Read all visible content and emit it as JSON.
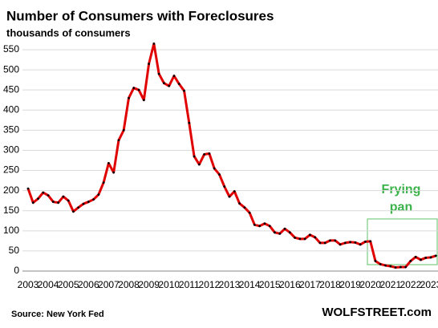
{
  "chart_data": {
    "type": "line",
    "title": "Number  of Consumers  with Foreclosures",
    "subtitle": "thousands of consumers",
    "source": "Source: New York Fed",
    "watermark": "WOLFSTREET.com",
    "annotation": [
      "Frying",
      "pan"
    ],
    "categories": [
      "2003",
      null,
      null,
      null,
      "2004",
      null,
      null,
      null,
      "2005",
      null,
      null,
      null,
      "2006",
      null,
      null,
      null,
      "2007",
      null,
      null,
      null,
      "2008",
      null,
      null,
      null,
      "2009",
      null,
      null,
      null,
      "2010",
      null,
      null,
      null,
      "2011",
      null,
      null,
      null,
      "2012",
      null,
      null,
      null,
      "2013",
      null,
      null,
      null,
      "2014",
      null,
      null,
      null,
      "2015",
      null,
      null,
      null,
      "2016",
      null,
      null,
      null,
      "2017",
      null,
      null,
      null,
      "2018",
      null,
      null,
      null,
      "2019",
      null,
      null,
      null,
      "2020",
      null,
      null,
      null,
      "2021",
      null,
      null,
      null,
      "2022",
      null,
      null,
      null,
      "2023",
      null
    ],
    "series": [
      {
        "name": "Consumers with foreclosures",
        "color": "#e00000",
        "values": [
          205,
          170,
          180,
          195,
          188,
          172,
          170,
          185,
          175,
          148,
          158,
          167,
          172,
          178,
          190,
          220,
          268,
          245,
          325,
          350,
          430,
          455,
          450,
          425,
          515,
          565,
          490,
          467,
          460,
          485,
          465,
          448,
          368,
          285,
          265,
          290,
          292,
          255,
          240,
          210,
          185,
          198,
          168,
          158,
          145,
          115,
          112,
          118,
          112,
          96,
          93,
          105,
          96,
          83,
          80,
          80,
          90,
          84,
          70,
          70,
          76,
          76,
          66,
          70,
          72,
          71,
          66,
          73,
          74,
          25,
          17,
          14,
          12,
          9,
          10,
          10,
          25,
          35,
          28,
          33,
          34,
          38
        ]
      }
    ],
    "ylim": [
      0,
      550
    ],
    "yticks": [
      0,
      50,
      100,
      150,
      200,
      250,
      300,
      350,
      400,
      450,
      500,
      550
    ],
    "grid": true
  }
}
